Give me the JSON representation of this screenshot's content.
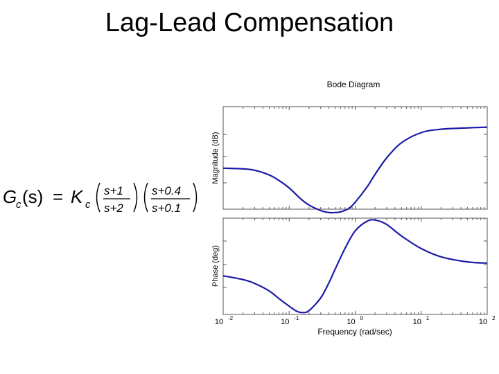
{
  "slide": {
    "title": "Lag-Lead Compensation"
  },
  "formula": {
    "lhs_G": "G",
    "lhs_sub": "c",
    "lhs_arg": "(s)",
    "equals": "=",
    "K": "K",
    "K_sub": "c",
    "frac1_num": "s+1",
    "frac1_den": "s+2",
    "frac2_num": "s+0.4",
    "frac2_den": "s+0.1"
  },
  "chart_data": {
    "type": "line",
    "title": "Bode Diagram",
    "xlabel": "Frequency  (rad/sec)",
    "xscale": "log",
    "xlim": [
      0.01,
      100
    ],
    "x_ticks": [
      {
        "base": "10",
        "exp": "-2"
      },
      {
        "base": "10",
        "exp": "-1"
      },
      {
        "base": "10",
        "exp": "0"
      },
      {
        "base": "10",
        "exp": "1"
      },
      {
        "base": "10",
        "exp": "2"
      }
    ],
    "grid": false,
    "color": "#1a1aa6",
    "subplots": [
      {
        "name": "magnitude",
        "ylabel": "Magnitude (dB)",
        "ylim": [
          -12,
          3
        ],
        "series": [
          {
            "x": [
              0.01,
              0.02,
              0.03,
              0.05,
              0.07,
              0.1,
              0.15,
              0.2,
              0.3,
              0.4,
              0.5,
              0.6,
              0.8,
              1,
              1.5,
              2,
              3,
              5,
              10,
              20,
              50,
              100
            ],
            "y": [
              -6.0,
              -6.1,
              -6.3,
              -7.0,
              -7.8,
              -8.9,
              -10.5,
              -11.4,
              -12.2,
              -12.5,
              -12.5,
              -12.4,
              -11.9,
              -11.0,
              -8.8,
              -6.9,
              -4.5,
              -2.3,
              -0.8,
              -0.3,
              -0.1,
              0
            ]
          }
        ]
      },
      {
        "name": "phase",
        "ylabel": "Phase (deg)",
        "ylim": [
          -38,
          38
        ],
        "series": [
          {
            "x": [
              0.01,
              0.02,
              0.03,
              0.05,
              0.07,
              0.1,
              0.13,
              0.16,
              0.2,
              0.3,
              0.4,
              0.5,
              0.7,
              1,
              1.5,
              2,
              3,
              5,
              10,
              20,
              50,
              100
            ],
            "y": [
              -7.5,
              -10.5,
              -13.5,
              -19.5,
              -25.5,
              -31.5,
              -35.5,
              -36.5,
              -35.0,
              -25.0,
              -13.0,
              -2.0,
              14.0,
              28.0,
              35.5,
              36.5,
              33.0,
              24.0,
              14.0,
              7.5,
              3.5,
              2.5
            ]
          }
        ]
      }
    ]
  }
}
